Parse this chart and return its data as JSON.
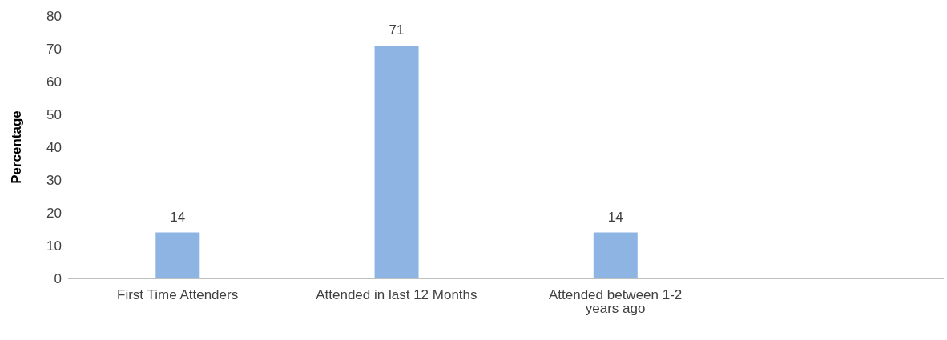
{
  "chart_data": {
    "type": "bar",
    "ylabel": "Percentage",
    "categories": [
      "First Time Attenders",
      "Attended in last 12 Months",
      "Attended between 1-2 years ago",
      null
    ],
    "values": [
      14,
      71,
      14,
      null
    ],
    "data_labels": true,
    "color": "#8db4e2",
    "ylim": [
      0,
      80
    ],
    "yticks": [
      0,
      10,
      20,
      30,
      40,
      50,
      60,
      70,
      80
    ],
    "grid": false,
    "legend": false
  }
}
